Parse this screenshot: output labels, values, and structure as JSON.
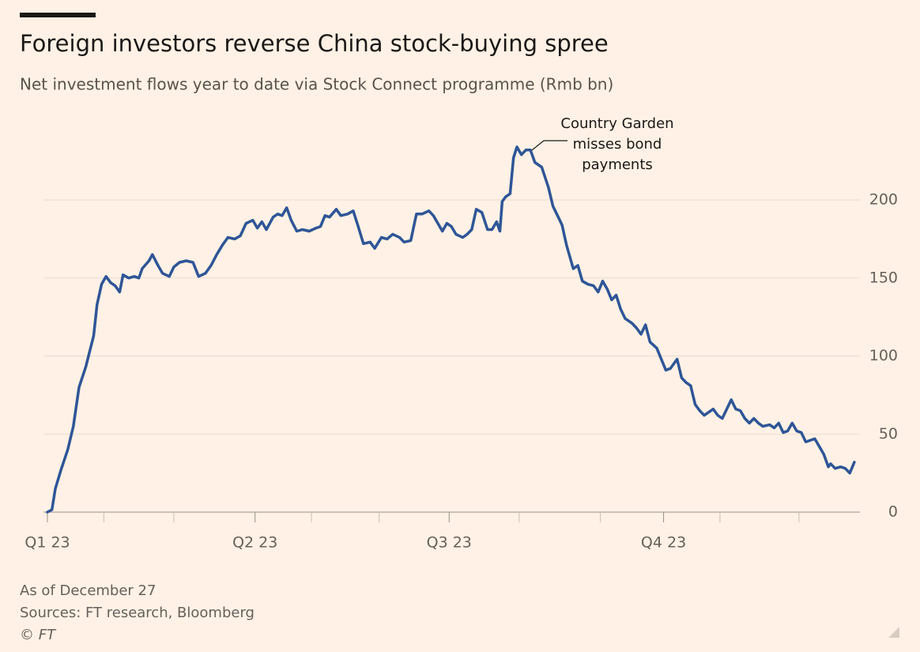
{
  "chart_data": {
    "type": "line",
    "title": "Foreign investors reverse China stock-buying spree",
    "subtitle": "Net investment flows year to date via Stock Connect programme (Rmb bn)",
    "annotation": [
      "Country Garden",
      "misses bond",
      "payments"
    ],
    "footer": [
      "As of December 27",
      "Sources: FT research, Bloomberg",
      "© FT"
    ],
    "x": [
      0,
      2,
      3.5,
      6,
      9,
      11.5,
      14,
      17,
      20.5,
      22,
      24,
      26,
      28,
      30,
      32,
      33.5,
      36,
      38.5,
      40.5,
      42,
      45,
      46.5,
      49,
      51,
      54,
      56,
      58.5,
      61.5,
      64.5,
      67,
      70,
      72.5,
      75,
      77.5,
      80,
      83,
      85.5,
      88,
      91,
      93,
      95,
      97,
      100,
      102,
      104,
      106,
      108,
      110.5,
      113,
      116,
      119,
      121,
      123,
      125,
      128,
      130,
      133,
      135.5,
      137.5,
      140,
      143,
      145,
      148,
      150.5,
      153,
      156,
      158,
      161,
      163.5,
      166,
      169,
      171,
      173,
      175,
      177,
      179,
      181,
      184,
      186,
      188,
      190,
      192.5,
      195,
      197,
      199,
      200.5,
      201.5,
      203,
      205,
      206.5,
      208,
      210,
      212,
      214,
      216,
      219,
      222,
      224,
      226,
      228,
      230,
      233,
      235,
      237,
      239.5,
      242,
      244,
      246,
      248,
      250,
      252,
      254,
      256,
      259,
      261,
      263,
      265,
      267,
      270,
      272,
      274,
      276,
      279,
      281,
      283,
      285,
      287,
      289,
      291,
      293,
      295,
      297,
      299,
      301,
      303,
      305,
      307,
      309,
      311,
      313,
      315,
      317,
      320,
      322,
      324,
      326,
      328,
      330,
      332,
      334,
      336,
      338,
      340,
      342,
      344,
      346,
      347,
      349,
      351.5,
      353.5,
      355.5,
      357.5
    ],
    "series": [
      {
        "color": "#2e5597",
        "values": [
          0,
          1.5,
          15,
          27,
          40,
          55,
          80,
          93,
          113,
          133,
          146,
          151,
          147,
          145,
          141,
          152,
          150,
          151,
          150,
          156,
          161,
          165,
          158,
          153,
          151,
          157,
          160,
          161,
          160,
          151,
          153,
          158,
          165,
          171,
          176,
          175,
          177,
          185,
          187,
          182,
          186,
          181,
          189,
          191,
          190,
          195,
          187,
          180,
          181,
          180,
          182,
          183,
          190,
          189,
          194,
          190,
          191,
          193,
          184,
          172,
          173,
          169,
          176,
          175,
          178,
          176,
          173,
          174,
          191,
          191,
          193,
          190,
          185,
          180,
          185,
          183,
          178,
          176,
          178,
          181,
          194,
          192,
          181,
          181,
          186,
          180,
          199,
          202,
          204,
          227,
          234,
          229,
          232,
          232,
          224,
          221,
          208,
          196,
          190,
          184,
          171,
          156,
          158,
          148,
          146,
          145,
          141,
          148,
          143,
          136,
          139,
          130,
          124,
          121,
          118,
          114,
          120,
          109,
          105,
          98,
          91,
          92,
          98,
          86,
          83,
          81,
          69,
          65,
          62,
          64,
          66,
          62,
          60,
          66,
          72,
          66,
          65,
          60,
          57,
          60,
          57,
          55,
          56,
          54,
          57,
          51,
          52,
          57,
          52,
          51,
          45,
          46,
          47,
          42,
          37,
          29,
          31,
          28,
          29,
          28,
          25,
          32
        ]
      }
    ],
    "xlim": [
      0,
      360
    ],
    "xticks": [
      {
        "value": 0,
        "label": "Q1 23"
      },
      {
        "value": 92,
        "label": "Q2 23"
      },
      {
        "value": 178,
        "label": "Q3 23"
      },
      {
        "value": 273,
        "label": "Q4 23"
      }
    ],
    "xminorticks": [
      25,
      56,
      117,
      147,
      209,
      245,
      298,
      333
    ],
    "ylim": [
      0,
      240
    ],
    "yticks": [
      0,
      50,
      100,
      150,
      200
    ],
    "grid": true
  }
}
